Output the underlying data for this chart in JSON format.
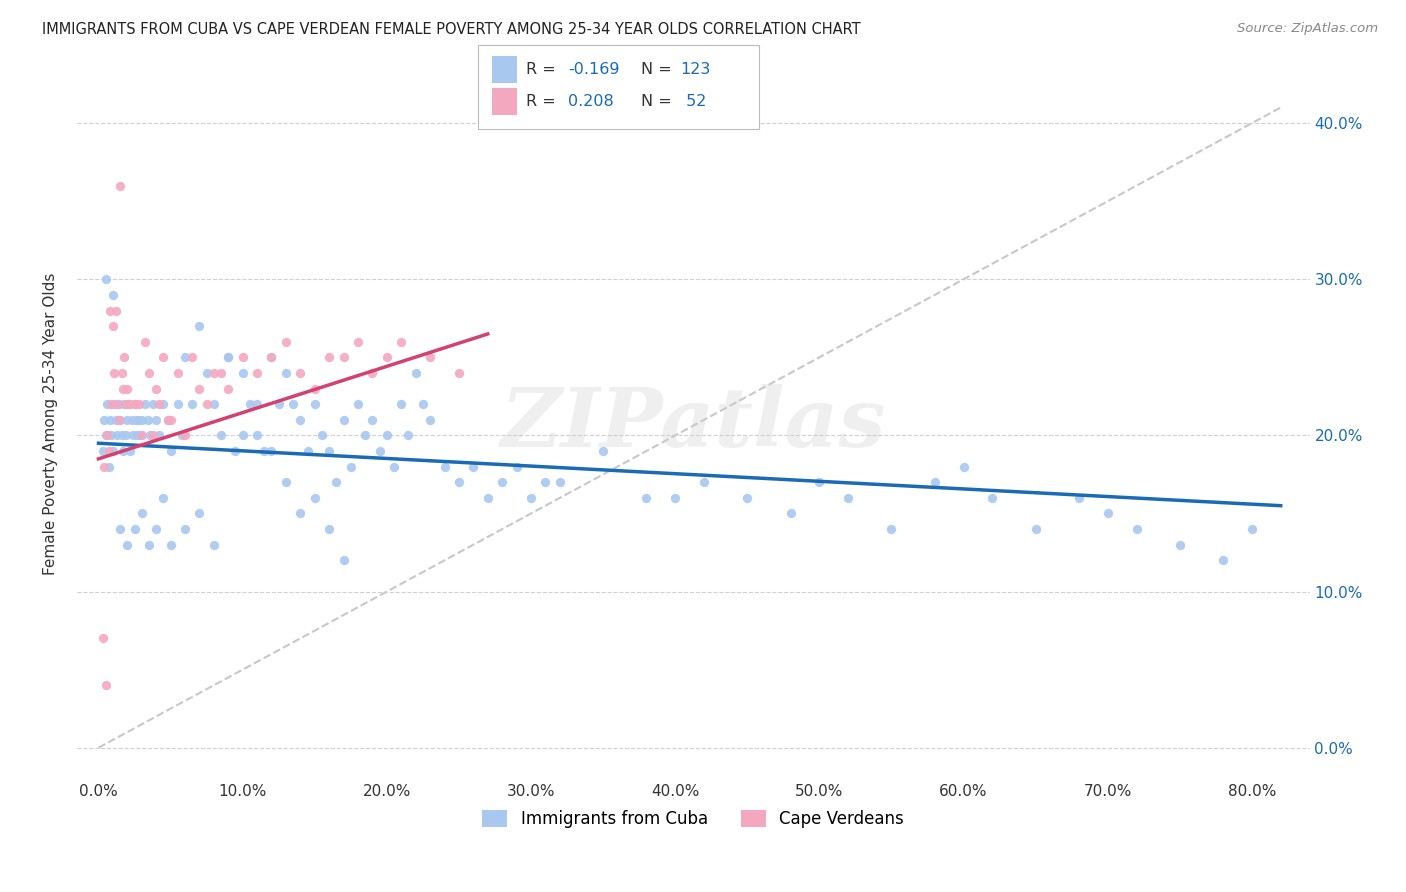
{
  "title": "IMMIGRANTS FROM CUBA VS CAPE VERDEAN FEMALE POVERTY AMONG 25-34 YEAR OLDS CORRELATION CHART",
  "source": "Source: ZipAtlas.com",
  "ylabel": "Female Poverty Among 25-34 Year Olds",
  "xtick_vals": [
    0.0,
    0.1,
    0.2,
    0.3,
    0.4,
    0.5,
    0.6,
    0.7,
    0.8
  ],
  "ytick_vals": [
    0.0,
    0.1,
    0.2,
    0.3,
    0.4
  ],
  "xlim": [
    -0.015,
    0.84
  ],
  "ylim": [
    -0.02,
    0.435
  ],
  "cuba_color": "#a8c8f0",
  "cape_color": "#f4a8c0",
  "trendline_cuba_color": "#1a6bb5",
  "trendline_cape_color": "#d44070",
  "trendline_ref_color": "#c8c8c8",
  "watermark": "ZIPatlas",
  "cuba_x": [
    0.003,
    0.004,
    0.005,
    0.006,
    0.007,
    0.008,
    0.009,
    0.01,
    0.011,
    0.012,
    0.013,
    0.014,
    0.015,
    0.016,
    0.017,
    0.018,
    0.019,
    0.02,
    0.021,
    0.022,
    0.023,
    0.024,
    0.025,
    0.026,
    0.027,
    0.028,
    0.029,
    0.03,
    0.032,
    0.034,
    0.036,
    0.038,
    0.04,
    0.042,
    0.045,
    0.048,
    0.05,
    0.055,
    0.058,
    0.06,
    0.065,
    0.07,
    0.075,
    0.08,
    0.085,
    0.09,
    0.095,
    0.1,
    0.105,
    0.11,
    0.115,
    0.12,
    0.125,
    0.13,
    0.135,
    0.14,
    0.145,
    0.15,
    0.155,
    0.16,
    0.165,
    0.17,
    0.175,
    0.18,
    0.185,
    0.19,
    0.195,
    0.2,
    0.205,
    0.21,
    0.215,
    0.22,
    0.225,
    0.23,
    0.24,
    0.25,
    0.26,
    0.27,
    0.28,
    0.29,
    0.3,
    0.31,
    0.32,
    0.35,
    0.38,
    0.4,
    0.42,
    0.45,
    0.48,
    0.5,
    0.52,
    0.55,
    0.58,
    0.6,
    0.62,
    0.65,
    0.68,
    0.7,
    0.72,
    0.75,
    0.78,
    0.8,
    0.005,
    0.01,
    0.015,
    0.02,
    0.025,
    0.03,
    0.035,
    0.04,
    0.045,
    0.05,
    0.06,
    0.07,
    0.08,
    0.09,
    0.1,
    0.11,
    0.12,
    0.13,
    0.14,
    0.15,
    0.16,
    0.17
  ],
  "cuba_y": [
    0.19,
    0.21,
    0.2,
    0.22,
    0.18,
    0.21,
    0.2,
    0.19,
    0.22,
    0.21,
    0.2,
    0.22,
    0.21,
    0.2,
    0.19,
    0.22,
    0.2,
    0.21,
    0.22,
    0.19,
    0.21,
    0.2,
    0.22,
    0.21,
    0.2,
    0.21,
    0.2,
    0.21,
    0.22,
    0.21,
    0.2,
    0.22,
    0.21,
    0.2,
    0.22,
    0.21,
    0.19,
    0.22,
    0.2,
    0.25,
    0.22,
    0.27,
    0.24,
    0.22,
    0.2,
    0.25,
    0.19,
    0.24,
    0.22,
    0.2,
    0.19,
    0.25,
    0.22,
    0.24,
    0.22,
    0.21,
    0.19,
    0.22,
    0.2,
    0.19,
    0.17,
    0.21,
    0.18,
    0.22,
    0.2,
    0.21,
    0.19,
    0.2,
    0.18,
    0.22,
    0.2,
    0.24,
    0.22,
    0.21,
    0.18,
    0.17,
    0.18,
    0.16,
    0.17,
    0.18,
    0.16,
    0.17,
    0.17,
    0.19,
    0.16,
    0.16,
    0.17,
    0.16,
    0.15,
    0.17,
    0.16,
    0.14,
    0.17,
    0.18,
    0.16,
    0.14,
    0.16,
    0.15,
    0.14,
    0.13,
    0.12,
    0.14,
    0.3,
    0.29,
    0.14,
    0.13,
    0.14,
    0.15,
    0.13,
    0.14,
    0.16,
    0.13,
    0.14,
    0.15,
    0.13,
    0.25,
    0.2,
    0.22,
    0.19,
    0.17,
    0.15,
    0.16,
    0.14,
    0.12
  ],
  "cape_x": [
    0.003,
    0.004,
    0.005,
    0.006,
    0.007,
    0.008,
    0.009,
    0.01,
    0.011,
    0.012,
    0.013,
    0.014,
    0.015,
    0.016,
    0.017,
    0.018,
    0.019,
    0.02,
    0.022,
    0.025,
    0.028,
    0.03,
    0.032,
    0.035,
    0.038,
    0.04,
    0.042,
    0.045,
    0.048,
    0.05,
    0.055,
    0.06,
    0.065,
    0.07,
    0.075,
    0.08,
    0.085,
    0.09,
    0.1,
    0.11,
    0.12,
    0.13,
    0.14,
    0.15,
    0.16,
    0.17,
    0.18,
    0.19,
    0.2,
    0.21,
    0.23,
    0.25
  ],
  "cape_y": [
    0.07,
    0.18,
    0.04,
    0.2,
    0.19,
    0.28,
    0.22,
    0.27,
    0.24,
    0.28,
    0.22,
    0.21,
    0.36,
    0.24,
    0.23,
    0.25,
    0.22,
    0.23,
    0.22,
    0.22,
    0.22,
    0.2,
    0.26,
    0.24,
    0.2,
    0.23,
    0.22,
    0.25,
    0.21,
    0.21,
    0.24,
    0.2,
    0.25,
    0.23,
    0.22,
    0.24,
    0.24,
    0.23,
    0.25,
    0.24,
    0.25,
    0.26,
    0.24,
    0.23,
    0.25,
    0.25,
    0.26,
    0.24,
    0.25,
    0.26,
    0.25,
    0.24
  ],
  "cuba_trend_x": [
    0.0,
    0.82
  ],
  "cuba_trend_y": [
    0.195,
    0.155
  ],
  "cape_trend_x": [
    0.0,
    0.27
  ],
  "cape_trend_y": [
    0.185,
    0.265
  ],
  "ref_line_x": [
    0.0,
    0.82
  ],
  "ref_line_y": [
    0.0,
    0.41
  ]
}
